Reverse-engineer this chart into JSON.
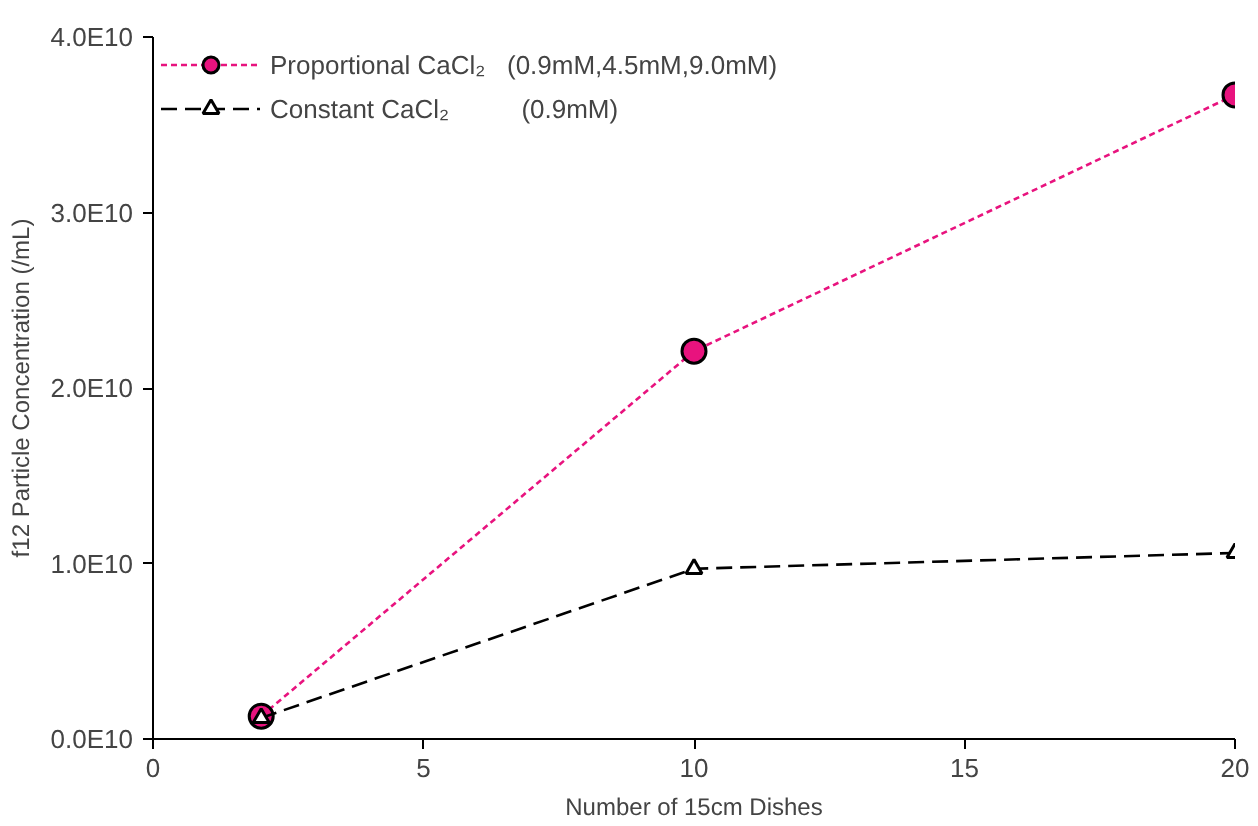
{
  "chart_data": {
    "type": "line",
    "xlabel": "Number of 15cm Dishes",
    "ylabel": "f12 Particle Concentration (/mL)",
    "x": [
      2,
      10,
      20
    ],
    "series": [
      {
        "name": "Proportional CaCl₂   (0.9mM,4.5mM,9.0mM)",
        "color": "#e8137e",
        "values": [
          1300000000.0,
          22100000000.0,
          36700000000.0
        ],
        "marker": "circle",
        "line_style": "dotted"
      },
      {
        "name": "Constant CaCl₂          (0.9mM)",
        "color": "#000000",
        "values": [
          1200000000.0,
          9700000000.0,
          10600000000.0
        ],
        "marker": "triangle",
        "line_style": "dashed"
      }
    ],
    "xlim": [
      0,
      20
    ],
    "xticks": [
      0,
      5,
      10,
      15,
      20
    ],
    "ylim": [
      0,
      40000000000.0
    ],
    "yticks": [
      {
        "value": 0,
        "label": "0.0E10"
      },
      {
        "value": 10000000000.0,
        "label": "1.0E10"
      },
      {
        "value": 20000000000.0,
        "label": "2.0E10"
      },
      {
        "value": 30000000000.0,
        "label": "3.0E10"
      },
      {
        "value": 40000000000.0,
        "label": "4.0E10"
      }
    ],
    "grid": false,
    "legend": "top left"
  }
}
